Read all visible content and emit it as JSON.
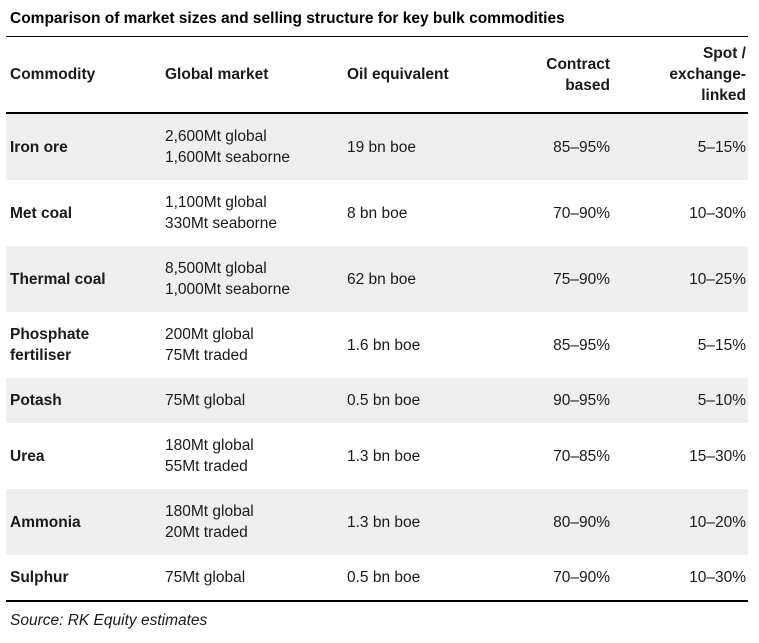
{
  "title": "Comparison of market sizes and selling structure for key bulk commodities",
  "source_note": "Source: RK Equity estimates",
  "colors": {
    "stripe": "#efefef",
    "rule": "#000000",
    "text": "#1a1a1a",
    "background": "#ffffff"
  },
  "table": {
    "header": {
      "commodity": "Commodity",
      "global_market": "Global market",
      "oil_equivalent": "Oil equivalent",
      "contract_based": "Contract\nbased",
      "spot_exchange_linked": "Spot /\nexchange-\nlinked"
    },
    "rows": [
      {
        "commodity": "Iron ore",
        "global_market": "2,600Mt global\n1,600Mt seaborne",
        "oil_equivalent": "19 bn boe",
        "contract_based": "85–95%",
        "spot_exchange_linked": "5–15%"
      },
      {
        "commodity": "Met coal",
        "global_market": "1,100Mt global\n330Mt seaborne",
        "oil_equivalent": "8 bn boe",
        "contract_based": "70–90%",
        "spot_exchange_linked": "10–30%"
      },
      {
        "commodity": "Thermal coal",
        "global_market": "8,500Mt global\n1,000Mt seaborne",
        "oil_equivalent": "62 bn boe",
        "contract_based": "75–90%",
        "spot_exchange_linked": "10–25%"
      },
      {
        "commodity": "Phosphate\nfertiliser",
        "global_market": "200Mt global\n75Mt traded",
        "oil_equivalent": "1.6 bn boe",
        "contract_based": "85–95%",
        "spot_exchange_linked": "5–15%"
      },
      {
        "commodity": "Potash",
        "global_market": "75Mt global",
        "oil_equivalent": "0.5 bn boe",
        "contract_based": "90–95%",
        "spot_exchange_linked": "5–10%"
      },
      {
        "commodity": "Urea",
        "global_market": "180Mt global\n55Mt traded",
        "oil_equivalent": "1.3 bn boe",
        "contract_based": "70–85%",
        "spot_exchange_linked": "15–30%"
      },
      {
        "commodity": "Ammonia",
        "global_market": "180Mt global\n20Mt traded",
        "oil_equivalent": "1.3 bn boe",
        "contract_based": "80–90%",
        "spot_exchange_linked": "10–20%"
      },
      {
        "commodity": "Sulphur",
        "global_market": "75Mt global",
        "oil_equivalent": "0.5 bn boe",
        "contract_based": "70–90%",
        "spot_exchange_linked": "10–30%"
      }
    ]
  },
  "chart_data": {
    "type": "table",
    "title": "Comparison of market sizes and selling structure for key bulk commodities",
    "columns": [
      "Commodity",
      "Global market",
      "Oil equivalent",
      "Contract based",
      "Spot / exchange-linked"
    ],
    "rows": [
      [
        "Iron ore",
        "2,600Mt global; 1,600Mt seaborne",
        "19 bn boe",
        "85–95%",
        "5–15%"
      ],
      [
        "Met coal",
        "1,100Mt global; 330Mt seaborne",
        "8 bn boe",
        "70–90%",
        "10–30%"
      ],
      [
        "Thermal coal",
        "8,500Mt global; 1,000Mt seaborne",
        "62 bn boe",
        "75–90%",
        "10–25%"
      ],
      [
        "Phosphate fertiliser",
        "200Mt global; 75Mt traded",
        "1.6 bn boe",
        "85–95%",
        "5–15%"
      ],
      [
        "Potash",
        "75Mt global",
        "0.5 bn boe",
        "90–95%",
        "5–10%"
      ],
      [
        "Urea",
        "180Mt global; 55Mt traded",
        "1.3 bn boe",
        "70–85%",
        "15–30%"
      ],
      [
        "Ammonia",
        "180Mt global; 20Mt traded",
        "1.3 bn boe",
        "80–90%",
        "10–20%"
      ],
      [
        "Sulphur",
        "75Mt global",
        "0.5 bn boe",
        "70–90%",
        "10–30%"
      ]
    ],
    "source": "Source: RK Equity estimates",
    "layout": {
      "striped_rows": "odd rows shaded",
      "stripe_color": "#efefef",
      "header_rule": true,
      "bottom_rule": true
    }
  }
}
